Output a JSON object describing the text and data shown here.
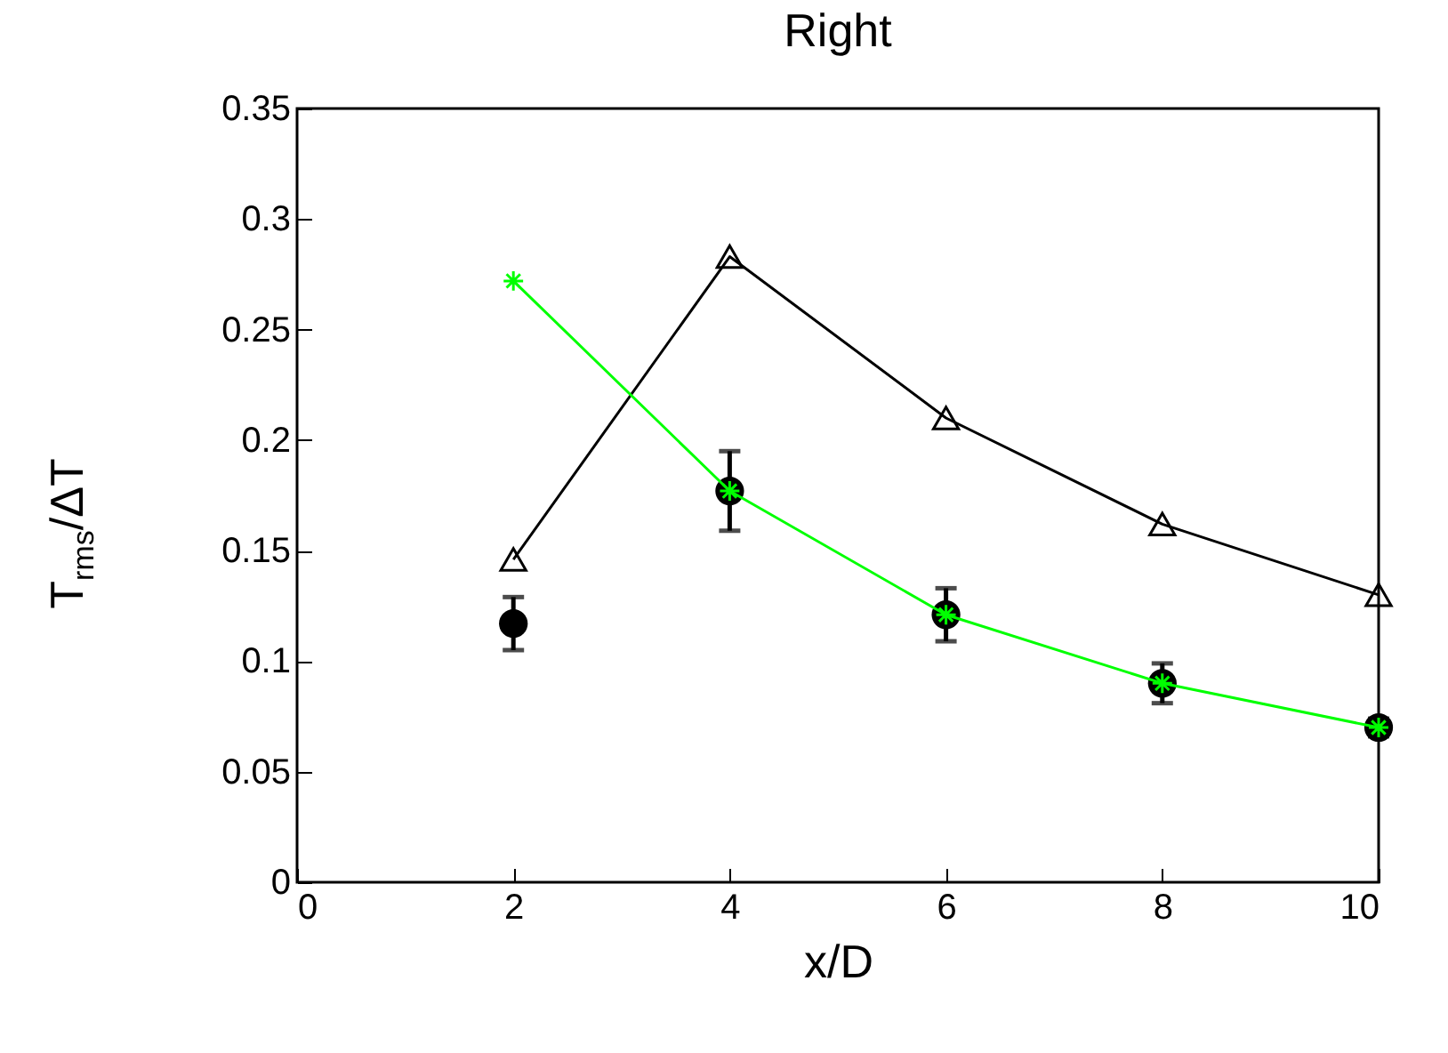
{
  "chart_data": {
    "type": "line",
    "title": "Right",
    "xlabel": "x/D",
    "ylabel": "T$_{rms}$/ΔT",
    "x": [
      2,
      4,
      6,
      8,
      10
    ],
    "series": [
      {
        "color": "#000000",
        "marker": "triangle",
        "values": [
          0.146,
          0.283,
          0.21,
          0.162,
          0.13
        ]
      },
      {
        "type": "scatter",
        "color": "#000000",
        "marker": "circle",
        "values": [
          0.117,
          0.177,
          0.121,
          0.09,
          0.07
        ],
        "errors": [
          0.012,
          0.018,
          0.012,
          0.009,
          0.004
        ]
      },
      {
        "color": "#00ff00",
        "marker": "cross",
        "values": [
          0.272,
          0.177,
          0.121,
          0.09,
          0.07
        ]
      }
    ],
    "xlim": [
      0,
      10
    ],
    "xticks": [
      0,
      2,
      4,
      6,
      8,
      10
    ],
    "ylim": [
      0,
      0.35
    ],
    "yticks": [
      0,
      0.05,
      0.1,
      0.15,
      0.2,
      0.25,
      0.3,
      0.35
    ],
    "grid": false
  }
}
